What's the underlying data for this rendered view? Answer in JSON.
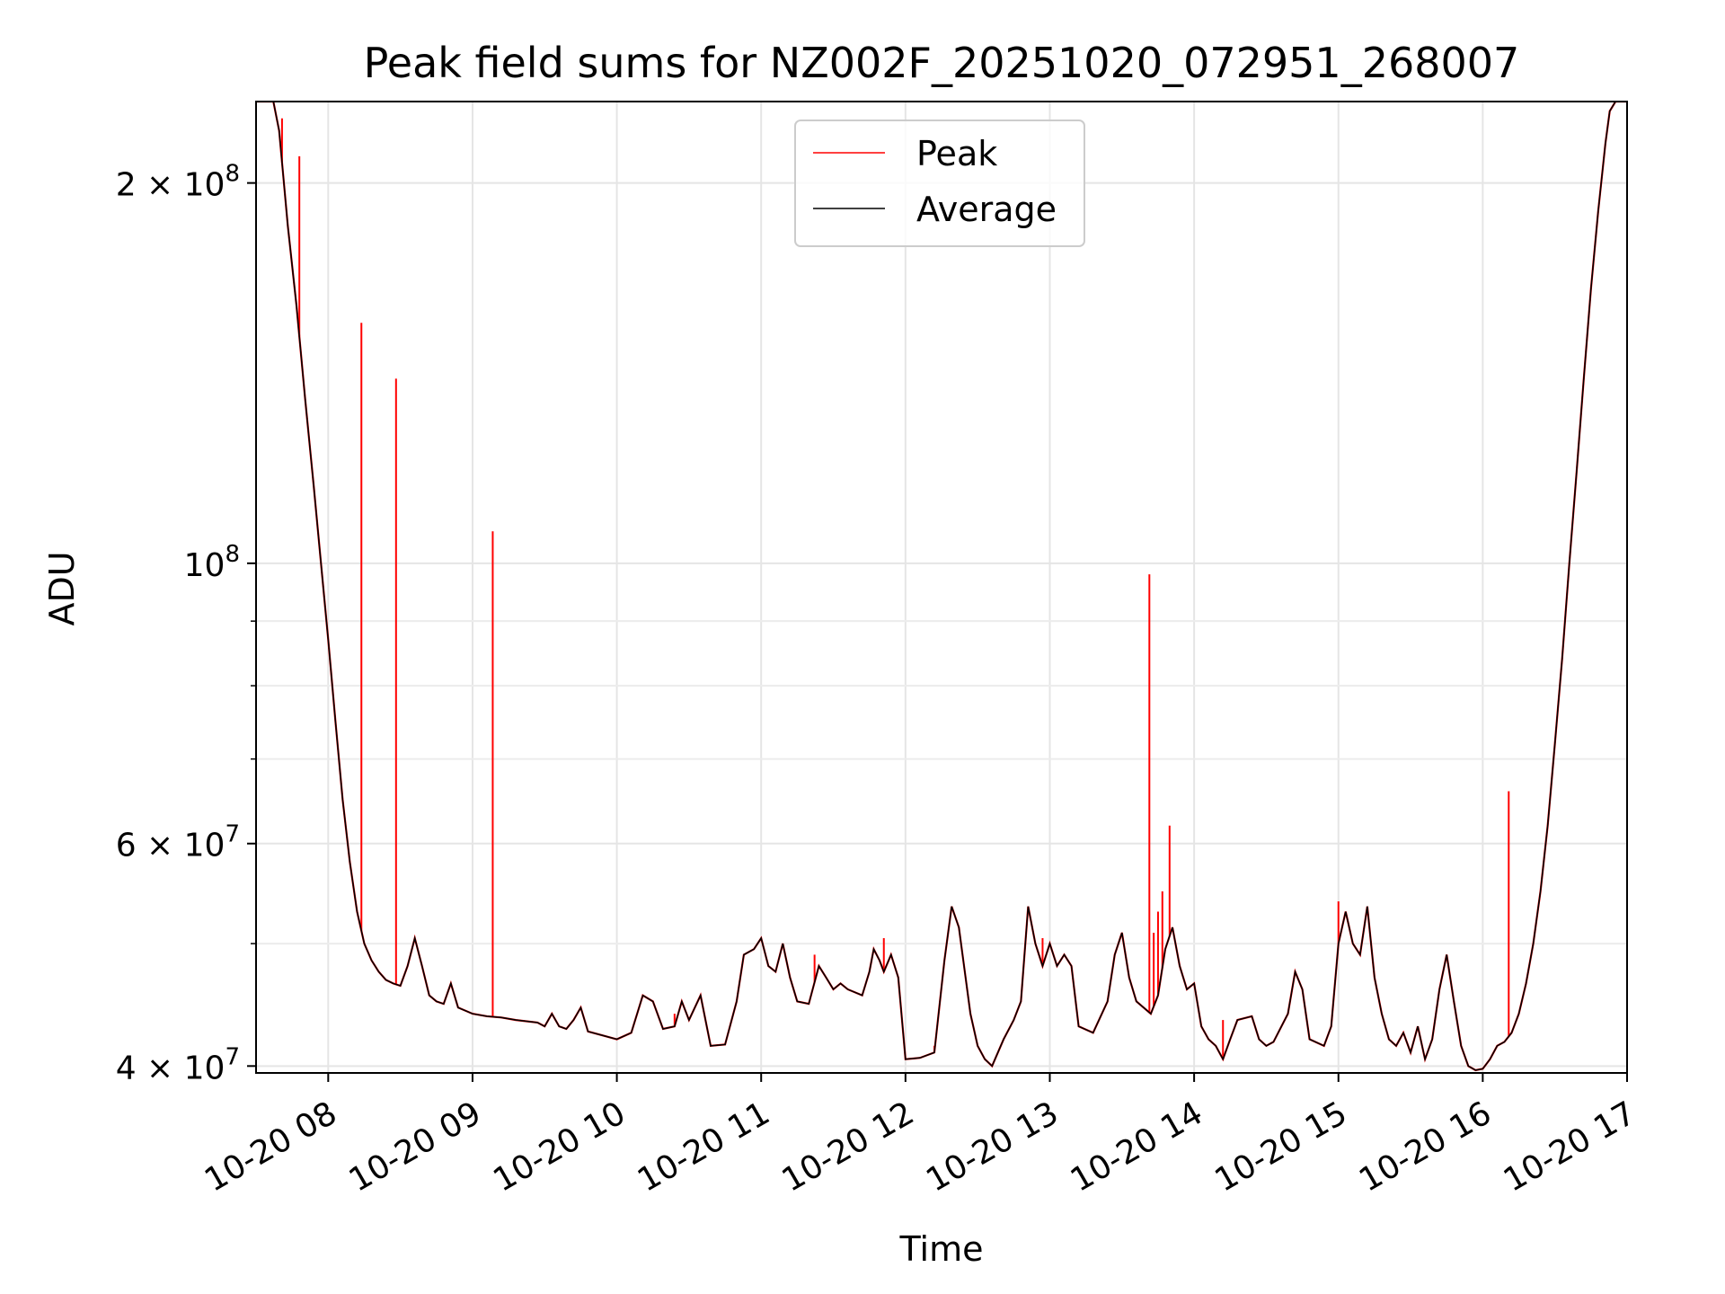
{
  "chart_data": {
    "type": "line",
    "title": "Peak field sums for NZ002F_20251020_072951_268007",
    "xlabel": "Time",
    "ylabel": "ADU",
    "yscale": "log",
    "xlim": [
      7.5,
      17.0
    ],
    "ylim": [
      39500000,
      232000000
    ],
    "grid": true,
    "legend_position": "top-center",
    "x_ticks": [
      {
        "value": 8,
        "label": "10-20 08"
      },
      {
        "value": 9,
        "label": "10-20 09"
      },
      {
        "value": 10,
        "label": "10-20 10"
      },
      {
        "value": 11,
        "label": "10-20 11"
      },
      {
        "value": 12,
        "label": "10-20 12"
      },
      {
        "value": 13,
        "label": "10-20 13"
      },
      {
        "value": 14,
        "label": "10-20 14"
      },
      {
        "value": 15,
        "label": "10-20 15"
      },
      {
        "value": 16,
        "label": "10-20 16"
      },
      {
        "value": 17,
        "label": "10-20 17"
      }
    ],
    "y_ticks": [
      {
        "value": 200000000,
        "mantissa": "2",
        "exponent": "8"
      },
      {
        "value": 100000000,
        "mantissa": "",
        "exponent": "8"
      },
      {
        "value": 60000000,
        "mantissa": "6",
        "exponent": "7"
      },
      {
        "value": 40000000,
        "mantissa": "4",
        "exponent": "7"
      }
    ],
    "y_minor_ticks": [
      50000000,
      70000000,
      80000000,
      90000000
    ],
    "series": [
      {
        "name": "Average",
        "color": "#000000",
        "points": [
          [
            7.49,
            232000000
          ],
          [
            7.62,
            232000000
          ],
          [
            7.66,
            220000000
          ],
          [
            7.72,
            185000000
          ],
          [
            7.78,
            160000000
          ],
          [
            7.84,
            135000000
          ],
          [
            7.9,
            115000000
          ],
          [
            7.95,
            100000000
          ],
          [
            8.0,
            87000000
          ],
          [
            8.05,
            75000000
          ],
          [
            8.1,
            65000000
          ],
          [
            8.15,
            58000000
          ],
          [
            8.2,
            53000000
          ],
          [
            8.25,
            50000000
          ],
          [
            8.3,
            48500000
          ],
          [
            8.35,
            47500000
          ],
          [
            8.4,
            46800000
          ],
          [
            8.45,
            46500000
          ],
          [
            8.5,
            46300000
          ],
          [
            8.55,
            48000000
          ],
          [
            8.6,
            50500000
          ],
          [
            8.65,
            48000000
          ],
          [
            8.7,
            45500000
          ],
          [
            8.75,
            45000000
          ],
          [
            8.8,
            44800000
          ],
          [
            8.85,
            46500000
          ],
          [
            8.9,
            44500000
          ],
          [
            9.0,
            44000000
          ],
          [
            9.1,
            43800000
          ],
          [
            9.2,
            43700000
          ],
          [
            9.3,
            43500000
          ],
          [
            9.45,
            43300000
          ],
          [
            9.5,
            43000000
          ],
          [
            9.55,
            44000000
          ],
          [
            9.6,
            43000000
          ],
          [
            9.65,
            42800000
          ],
          [
            9.7,
            43500000
          ],
          [
            9.75,
            44500000
          ],
          [
            9.8,
            42600000
          ],
          [
            9.9,
            42300000
          ],
          [
            10.0,
            42000000
          ],
          [
            10.1,
            42500000
          ],
          [
            10.18,
            45500000
          ],
          [
            10.25,
            45000000
          ],
          [
            10.32,
            42800000
          ],
          [
            10.4,
            43000000
          ],
          [
            10.45,
            45000000
          ],
          [
            10.5,
            43500000
          ],
          [
            10.58,
            45500000
          ],
          [
            10.65,
            41500000
          ],
          [
            10.75,
            41600000
          ],
          [
            10.83,
            45000000
          ],
          [
            10.88,
            49000000
          ],
          [
            10.95,
            49500000
          ],
          [
            11.0,
            50500000
          ],
          [
            11.05,
            48000000
          ],
          [
            11.1,
            47500000
          ],
          [
            11.15,
            50000000
          ],
          [
            11.2,
            47000000
          ],
          [
            11.25,
            45000000
          ],
          [
            11.33,
            44800000
          ],
          [
            11.4,
            48000000
          ],
          [
            11.45,
            47000000
          ],
          [
            11.5,
            46000000
          ],
          [
            11.55,
            46500000
          ],
          [
            11.6,
            46000000
          ],
          [
            11.7,
            45500000
          ],
          [
            11.75,
            47500000
          ],
          [
            11.78,
            49500000
          ],
          [
            11.82,
            48500000
          ],
          [
            11.85,
            47500000
          ],
          [
            11.9,
            49000000
          ],
          [
            11.95,
            47000000
          ],
          [
            12.0,
            40500000
          ],
          [
            12.1,
            40600000
          ],
          [
            12.2,
            41000000
          ],
          [
            12.27,
            48500000
          ],
          [
            12.32,
            53500000
          ],
          [
            12.37,
            51500000
          ],
          [
            12.45,
            44000000
          ],
          [
            12.5,
            41500000
          ],
          [
            12.55,
            40500000
          ],
          [
            12.6,
            40000000
          ],
          [
            12.68,
            42000000
          ],
          [
            12.75,
            43500000
          ],
          [
            12.8,
            45000000
          ],
          [
            12.85,
            53500000
          ],
          [
            12.9,
            50000000
          ],
          [
            12.95,
            48000000
          ],
          [
            13.0,
            50000000
          ],
          [
            13.05,
            48000000
          ],
          [
            13.1,
            49000000
          ],
          [
            13.15,
            48000000
          ],
          [
            13.2,
            43000000
          ],
          [
            13.3,
            42500000
          ],
          [
            13.4,
            45000000
          ],
          [
            13.45,
            49000000
          ],
          [
            13.5,
            51000000
          ],
          [
            13.55,
            47000000
          ],
          [
            13.6,
            45000000
          ],
          [
            13.65,
            44500000
          ],
          [
            13.7,
            44000000
          ],
          [
            13.75,
            45500000
          ],
          [
            13.8,
            49500000
          ],
          [
            13.85,
            51500000
          ],
          [
            13.9,
            48000000
          ],
          [
            13.95,
            46000000
          ],
          [
            14.0,
            46500000
          ],
          [
            14.05,
            43000000
          ],
          [
            14.1,
            42000000
          ],
          [
            14.15,
            41500000
          ],
          [
            14.2,
            40500000
          ],
          [
            14.25,
            42000000
          ],
          [
            14.3,
            43500000
          ],
          [
            14.4,
            43800000
          ],
          [
            14.45,
            42000000
          ],
          [
            14.5,
            41500000
          ],
          [
            14.55,
            41800000
          ],
          [
            14.65,
            44000000
          ],
          [
            14.7,
            47500000
          ],
          [
            14.75,
            46000000
          ],
          [
            14.8,
            42000000
          ],
          [
            14.9,
            41500000
          ],
          [
            14.95,
            43000000
          ],
          [
            15.0,
            50000000
          ],
          [
            15.05,
            53000000
          ],
          [
            15.1,
            50000000
          ],
          [
            15.15,
            49000000
          ],
          [
            15.2,
            53500000
          ],
          [
            15.25,
            47000000
          ],
          [
            15.3,
            44000000
          ],
          [
            15.35,
            42000000
          ],
          [
            15.4,
            41500000
          ],
          [
            15.45,
            42500000
          ],
          [
            15.5,
            41000000
          ],
          [
            15.55,
            43000000
          ],
          [
            15.6,
            40500000
          ],
          [
            15.65,
            42000000
          ],
          [
            15.7,
            46000000
          ],
          [
            15.75,
            49000000
          ],
          [
            15.8,
            45000000
          ],
          [
            15.85,
            41500000
          ],
          [
            15.9,
            40000000
          ],
          [
            15.95,
            39700000
          ],
          [
            16.0,
            39800000
          ],
          [
            16.05,
            40500000
          ],
          [
            16.1,
            41500000
          ],
          [
            16.15,
            41800000
          ],
          [
            16.2,
            42500000
          ],
          [
            16.25,
            44000000
          ],
          [
            16.3,
            46500000
          ],
          [
            16.35,
            50000000
          ],
          [
            16.4,
            55000000
          ],
          [
            16.45,
            62000000
          ],
          [
            16.5,
            72000000
          ],
          [
            16.55,
            84000000
          ],
          [
            16.6,
            100000000
          ],
          [
            16.65,
            118000000
          ],
          [
            16.7,
            140000000
          ],
          [
            16.75,
            165000000
          ],
          [
            16.8,
            190000000
          ],
          [
            16.85,
            215000000
          ],
          [
            16.88,
            228000000
          ],
          [
            16.92,
            232000000
          ],
          [
            17.01,
            232000000
          ]
        ]
      },
      {
        "name": "Peak",
        "color": "#ff0000",
        "spikes": [
          [
            7.68,
            225000000
          ],
          [
            7.8,
            210000000
          ],
          [
            8.23,
            155000000
          ],
          [
            8.47,
            140000000
          ],
          [
            9.14,
            106000000
          ],
          [
            10.4,
            44000000
          ],
          [
            11.37,
            49000000
          ],
          [
            11.85,
            50500000
          ],
          [
            12.2,
            41500000
          ],
          [
            12.95,
            50500000
          ],
          [
            13.69,
            98000000
          ],
          [
            13.72,
            51000000
          ],
          [
            13.75,
            53000000
          ],
          [
            13.78,
            55000000
          ],
          [
            13.83,
            62000000
          ],
          [
            14.2,
            43500000
          ],
          [
            15.0,
            54000000
          ],
          [
            15.85,
            41500000
          ],
          [
            16.18,
            66000000
          ]
        ]
      }
    ]
  },
  "legend": {
    "entries": [
      {
        "label": "Peak",
        "color": "#ff0000"
      },
      {
        "label": "Average",
        "color": "#000000"
      }
    ]
  }
}
